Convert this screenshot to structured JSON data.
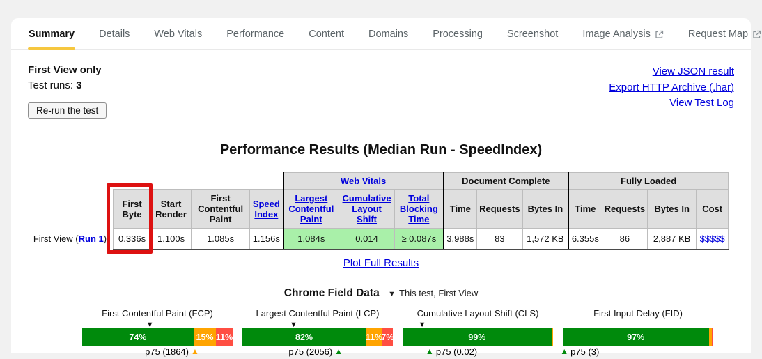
{
  "colors": {
    "accent_yellow": "#f6c73f",
    "link_blue": "#0000dd",
    "highlight_red": "#dd1111",
    "table_header_bg": "#dfdfdf",
    "web_vitals_cell_bg": "#a9f0a9",
    "good": "#008a0c",
    "needs_improvement": "#ffa400",
    "poor": "#ff4e42",
    "this_test_marker": "#0d0d0d"
  },
  "tabs": {
    "items": [
      {
        "label": "Summary"
      },
      {
        "label": "Details"
      },
      {
        "label": "Web Vitals"
      },
      {
        "label": "Performance"
      },
      {
        "label": "Content"
      },
      {
        "label": "Domains"
      },
      {
        "label": "Processing"
      },
      {
        "label": "Screenshot"
      },
      {
        "label": "Image Analysis"
      },
      {
        "label": "Request Map"
      }
    ]
  },
  "header": {
    "view_mode": "First View only",
    "test_runs_label": "Test runs:",
    "test_runs_value": "3",
    "rerun_button": "Re-run the test",
    "links": [
      "View JSON result",
      "Export HTTP Archive (.har)",
      "View Test Log"
    ]
  },
  "results": {
    "title": "Performance Results (Median Run - SpeedIndex)",
    "groups": {
      "web_vitals": "Web Vitals",
      "document_complete": "Document Complete",
      "fully_loaded": "Fully Loaded"
    },
    "columns": {
      "first_byte": "First Byte",
      "start_render": "Start Render",
      "first_contentful_paint": "First Contentful Paint",
      "speed_index": "Speed Index",
      "largest_contentful_paint": "Largest Contentful Paint",
      "cumulative_layout_shift": "Cumulative Layout Shift",
      "total_blocking_time": "Total Blocking Time",
      "dc_time": "Time",
      "dc_requests": "Requests",
      "dc_bytes": "Bytes In",
      "fl_time": "Time",
      "fl_requests": "Requests",
      "fl_bytes": "Bytes In",
      "cost": "Cost"
    },
    "row": {
      "label_prefix": "First View (",
      "run_link": "Run 1",
      "label_suffix": ")",
      "first_byte": "0.336s",
      "start_render": "1.100s",
      "first_contentful_paint": "1.085s",
      "speed_index": "1.156s",
      "largest_contentful_paint": "1.084s",
      "cumulative_layout_shift": "0.014",
      "total_blocking_time": "≥ 0.087s",
      "dc_time": "3.988s",
      "dc_requests": "83",
      "dc_bytes": "1,572 KB",
      "fl_time": "6.355s",
      "fl_requests": "86",
      "fl_bytes": "2,887 KB",
      "cost": "$$$$$"
    },
    "plot_link": "Plot Full Results"
  },
  "field_data": {
    "heading": "Chrome Field Data",
    "glyph_down": "▼",
    "glyph_up": "▲",
    "subheading": "This test, First View",
    "charts": [
      {
        "title": "First Contentful Paint (FCP)",
        "this_test_pct": 45,
        "p75_label": "p75 (1864)",
        "p75_pct": 75,
        "p75_level": "needs_improvement",
        "p75_side": "left",
        "segments": [
          {
            "level": "good",
            "pct": 74,
            "label": "74%"
          },
          {
            "level": "needs_improvement",
            "pct": 15,
            "label": "15%"
          },
          {
            "level": "poor",
            "pct": 11,
            "label": "11%"
          }
        ]
      },
      {
        "title": "Largest Contentful Paint (LCP)",
        "this_test_pct": 34,
        "p75_label": "p75 (2056)",
        "p75_pct": 64,
        "p75_level": "good",
        "p75_side": "left",
        "segments": [
          {
            "level": "good",
            "pct": 82,
            "label": "82%"
          },
          {
            "level": "needs_improvement",
            "pct": 11,
            "label": "11%"
          },
          {
            "level": "poor",
            "pct": 7,
            "label": "7%"
          }
        ]
      },
      {
        "title": "Cumulative Layout Shift (CLS)",
        "this_test_pct": 13,
        "p75_label": "p75 (0.02)",
        "p75_pct": 18,
        "p75_level": "good",
        "p75_side": "right",
        "segments": [
          {
            "level": "good",
            "pct": 99,
            "label": "99%"
          },
          {
            "level": "needs_improvement",
            "pct": 1,
            "label": ""
          }
        ]
      },
      {
        "title": "First Input Delay (FID)",
        "this_test_pct": null,
        "p75_label": "p75 (3)",
        "p75_pct": 1,
        "p75_level": "good",
        "p75_side": "right",
        "segments": [
          {
            "level": "good",
            "pct": 97,
            "label": "97%"
          },
          {
            "level": "needs_improvement",
            "pct": 2,
            "label": ""
          },
          {
            "level": "poor",
            "pct": 1,
            "label": ""
          }
        ]
      }
    ]
  },
  "chart_data": [
    {
      "type": "bar",
      "orientation": "horizontal-stacked",
      "title": "First Contentful Paint (FCP)",
      "categories": [
        "good",
        "needs improvement",
        "poor"
      ],
      "values": [
        74,
        15,
        11
      ],
      "unit": "%",
      "p75": 1864,
      "p75_marker_color": "orange",
      "this_test_marker_pct": 45
    },
    {
      "type": "bar",
      "orientation": "horizontal-stacked",
      "title": "Largest Contentful Paint (LCP)",
      "categories": [
        "good",
        "needs improvement",
        "poor"
      ],
      "values": [
        82,
        11,
        7
      ],
      "unit": "%",
      "p75": 2056,
      "p75_marker_color": "green",
      "this_test_marker_pct": 34
    },
    {
      "type": "bar",
      "orientation": "horizontal-stacked",
      "title": "Cumulative Layout Shift (CLS)",
      "categories": [
        "good",
        "needs improvement",
        "poor"
      ],
      "values": [
        99,
        1,
        0
      ],
      "unit": "%",
      "p75": 0.02,
      "p75_marker_color": "green",
      "this_test_marker_pct": 13
    },
    {
      "type": "bar",
      "orientation": "horizontal-stacked",
      "title": "First Input Delay (FID)",
      "categories": [
        "good",
        "needs improvement",
        "poor"
      ],
      "values": [
        97,
        2,
        1
      ],
      "unit": "%",
      "p75": 3,
      "p75_marker_color": "green",
      "this_test_marker_pct": null
    }
  ]
}
